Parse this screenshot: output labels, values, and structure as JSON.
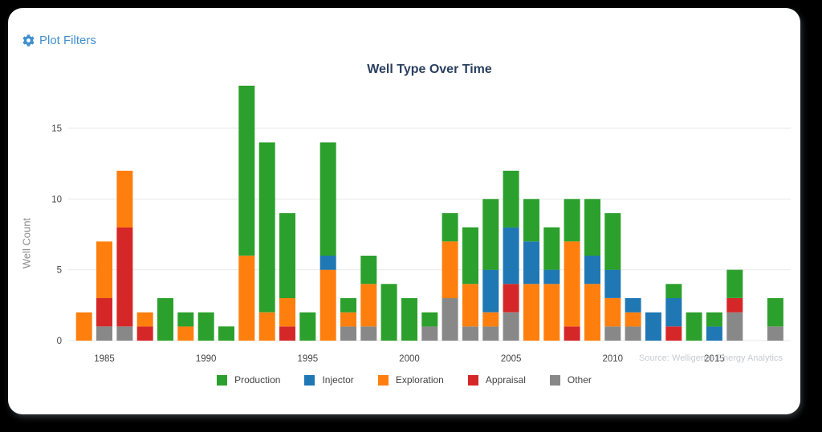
{
  "window": {
    "background_color": "#000000",
    "card_color": "#ffffff"
  },
  "header": {
    "label": "Plot Filters",
    "icon": "gear-icon",
    "accent_color": "#4090cd"
  },
  "chart_data": {
    "type": "bar",
    "stacked": true,
    "title": "Well Type Over Time",
    "xlabel": "",
    "ylabel": "Well Count",
    "ylim": [
      0,
      18.9
    ],
    "yticks": [
      0,
      5,
      10,
      15
    ],
    "xtick_years": [
      1985,
      1990,
      1995,
      2000,
      2005,
      2010,
      2015
    ],
    "grid": true,
    "years": [
      1984,
      1985,
      1986,
      1987,
      1988,
      1989,
      1990,
      1991,
      1992,
      1993,
      1994,
      1995,
      1996,
      1997,
      1998,
      1999,
      2000,
      2001,
      2002,
      2003,
      2004,
      2005,
      2006,
      2007,
      2008,
      2009,
      2010,
      2011,
      2012,
      2013,
      2014,
      2015,
      2016,
      2017,
      2018
    ],
    "series": [
      {
        "name": "Other",
        "color": "#888888",
        "values": [
          0,
          1,
          1,
          0,
          0,
          0,
          0,
          0,
          0,
          0,
          0,
          0,
          0,
          1,
          1,
          0,
          0,
          1,
          3,
          1,
          1,
          2,
          0,
          0,
          0,
          0,
          1,
          1,
          0,
          0,
          0,
          0,
          2,
          0,
          1
        ]
      },
      {
        "name": "Appraisal",
        "color": "#d62728",
        "values": [
          0,
          2,
          7,
          1,
          0,
          0,
          0,
          0,
          0,
          0,
          1,
          0,
          0,
          0,
          0,
          0,
          0,
          0,
          0,
          0,
          0,
          2,
          0,
          0,
          1,
          0,
          0,
          0,
          0,
          1,
          0,
          0,
          1,
          0,
          0
        ]
      },
      {
        "name": "Exploration",
        "color": "#ff7f0e",
        "values": [
          2,
          4,
          4,
          1,
          0,
          1,
          0,
          0,
          6,
          2,
          2,
          0,
          5,
          1,
          3,
          0,
          0,
          0,
          4,
          3,
          1,
          0,
          4,
          4,
          6,
          4,
          2,
          1,
          0,
          0,
          0,
          0,
          0,
          0,
          0
        ]
      },
      {
        "name": "Injector",
        "color": "#1f77b4",
        "values": [
          0,
          0,
          0,
          0,
          0,
          0,
          0,
          0,
          0,
          0,
          0,
          0,
          1,
          0,
          0,
          0,
          0,
          0,
          0,
          0,
          3,
          4,
          3,
          1,
          0,
          2,
          2,
          1,
          2,
          2,
          0,
          1,
          0,
          0,
          0
        ]
      },
      {
        "name": "Production",
        "color": "#2ca02c",
        "values": [
          0,
          0,
          0,
          0,
          3,
          1,
          2,
          1,
          12,
          12,
          6,
          2,
          8,
          1,
          2,
          4,
          3,
          1,
          2,
          4,
          5,
          4,
          3,
          3,
          3,
          4,
          4,
          0,
          0,
          1,
          2,
          1,
          2,
          0,
          2
        ]
      }
    ],
    "legend_order": [
      "Production",
      "Injector",
      "Exploration",
      "Appraisal",
      "Other"
    ],
    "legend_position": "bottom",
    "source": "Source: Welligence Energy Analytics",
    "colors": {
      "gridline": "#e9e9ec",
      "tick_label": "#444444",
      "title": "#2a3f5f",
      "axis_title": "#8c8c8c",
      "source": "#c6cbd1"
    }
  }
}
